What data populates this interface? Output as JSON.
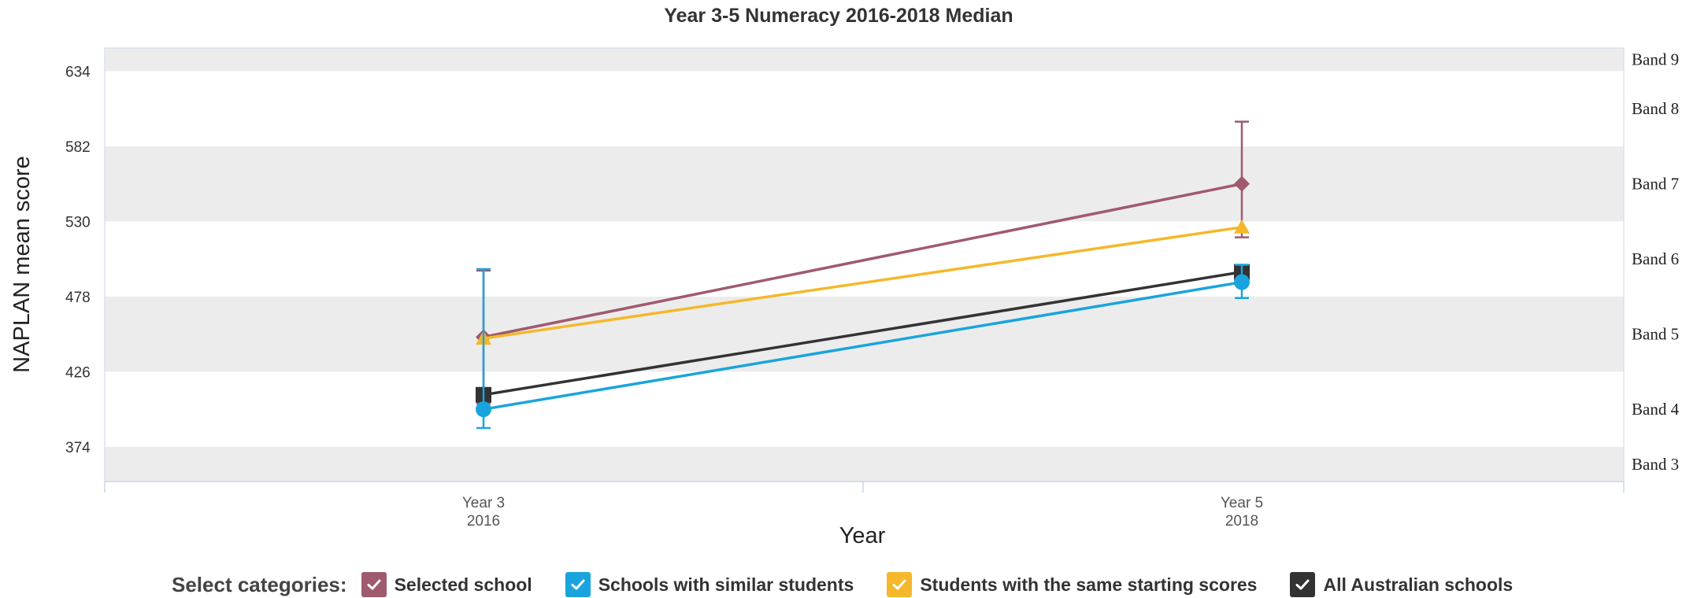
{
  "legend": {
    "title": "Select categories:",
    "items": [
      {
        "label": "Selected school",
        "color": "#a05a6e",
        "icon": "check-icon",
        "checked": true
      },
      {
        "label": "Schools with similar students",
        "color": "#1aa4dd",
        "icon": "check-icon",
        "checked": true
      },
      {
        "label": "Students with the same starting scores",
        "color": "#f5b82a",
        "icon": "check-icon",
        "checked": true
      },
      {
        "label": "All Australian schools",
        "color": "#333333",
        "icon": "check-icon",
        "checked": true
      }
    ]
  },
  "chart_data": {
    "type": "line",
    "title": "Year 3-5 Numeracy 2016-2018 Median",
    "xlabel": "Year",
    "ylabel": "NAPLAN mean score",
    "categories": [
      {
        "line1": "Year 3",
        "line2": "2016"
      },
      {
        "line1": "Year 5",
        "line2": "2018"
      }
    ],
    "ylim": [
      350,
      650
    ],
    "yticks": [
      374,
      426,
      478,
      530,
      582,
      634
    ],
    "grid": "alternating horizontal bands",
    "bands": [
      {
        "label": "Band 3",
        "from": 350,
        "to": 374
      },
      {
        "label": "Band 4",
        "from": 374,
        "to": 426
      },
      {
        "label": "Band 5",
        "from": 426,
        "to": 478
      },
      {
        "label": "Band 6",
        "from": 478,
        "to": 530
      },
      {
        "label": "Band 7",
        "from": 530,
        "to": 582
      },
      {
        "label": "Band 8",
        "from": 582,
        "to": 634
      },
      {
        "label": "Band 9",
        "from": 634,
        "to": 650
      }
    ],
    "series": [
      {
        "name": "Selected school",
        "color": "#a05a6e",
        "marker": "diamond",
        "values": [
          450,
          556
        ],
        "errors": [
          [
            404,
            496
          ],
          [
            519,
            599
          ]
        ]
      },
      {
        "name": "Students with the same starting scores",
        "color": "#f5b82a",
        "marker": "triangle",
        "values": [
          449,
          526
        ],
        "errors": null
      },
      {
        "name": "All Australian schools",
        "color": "#333333",
        "marker": "square",
        "values": [
          410,
          495
        ],
        "errors": null
      },
      {
        "name": "Schools with similar students",
        "color": "#1aa4dd",
        "marker": "circle",
        "values": [
          400,
          488
        ],
        "errors": [
          [
            387,
            497
          ],
          [
            477,
            500
          ]
        ]
      }
    ]
  }
}
